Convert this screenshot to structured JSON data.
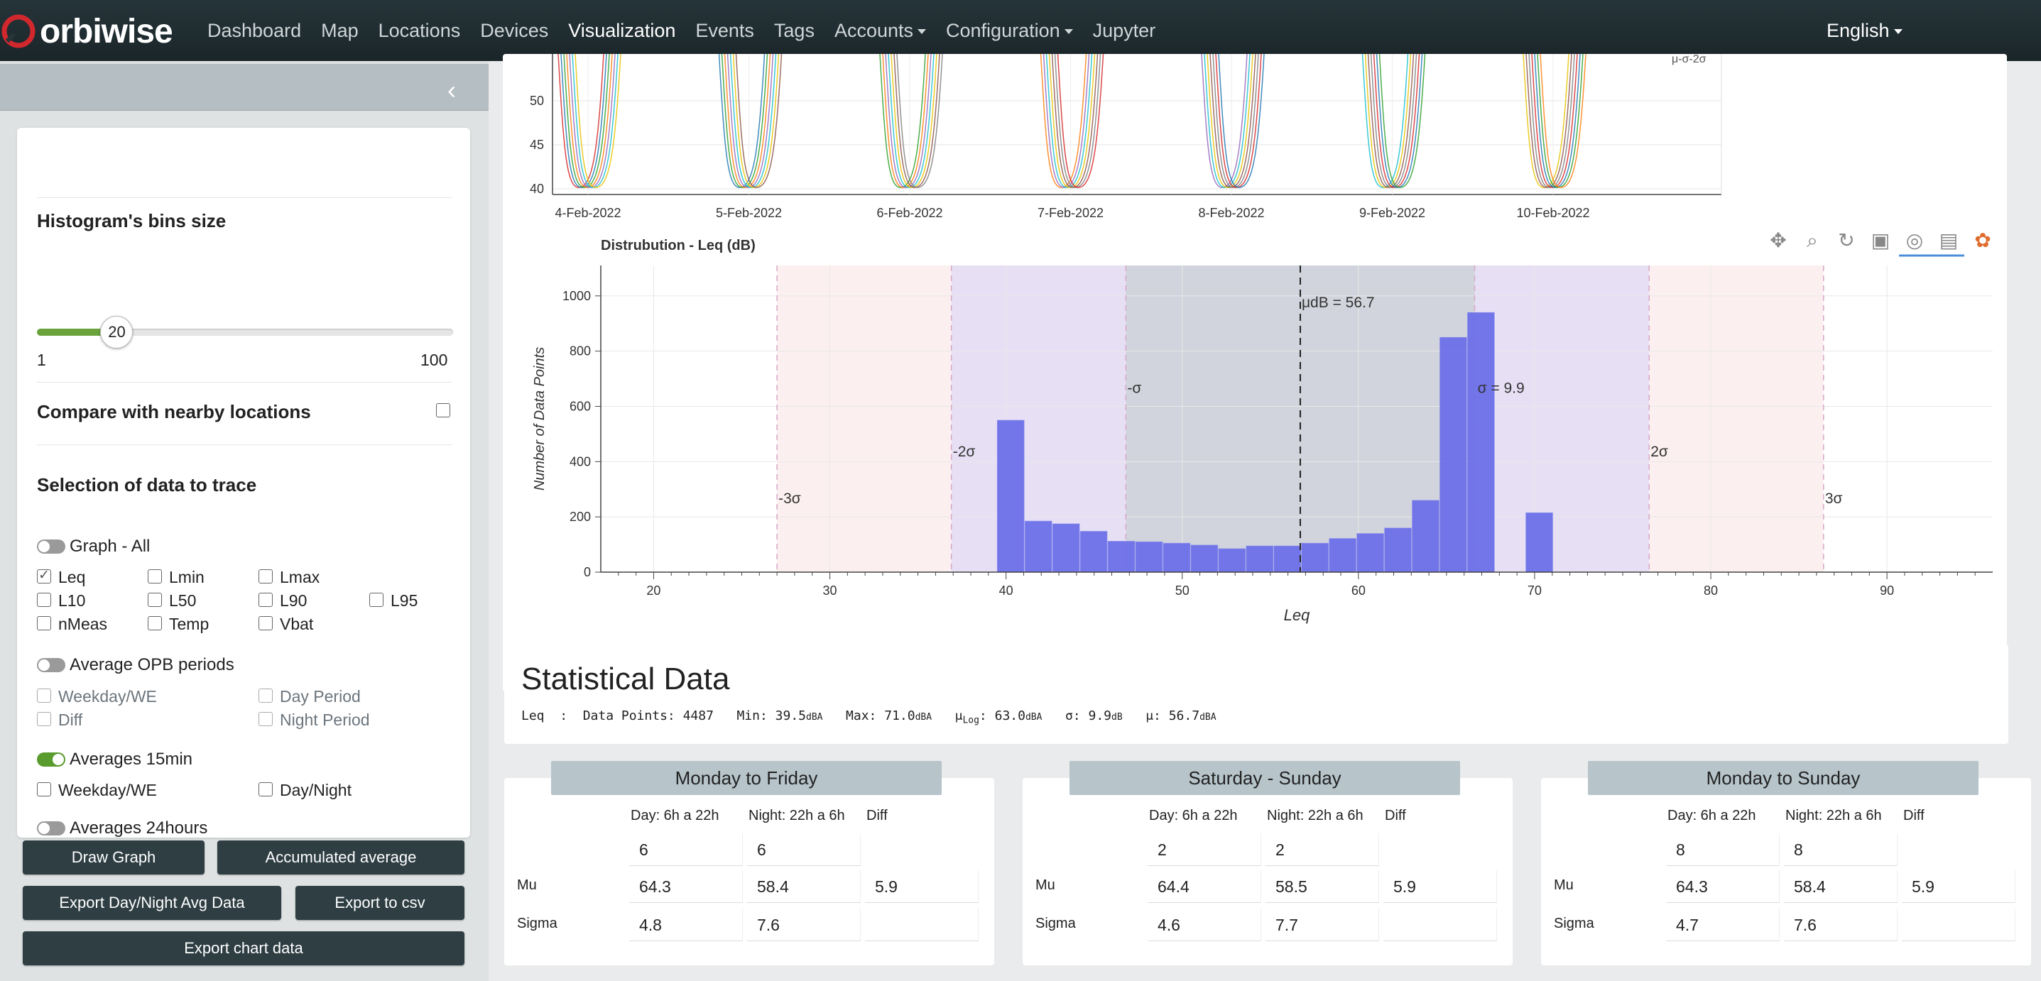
{
  "navbar": {
    "logo": "orbiwise",
    "items": [
      "Dashboard",
      "Map",
      "Locations",
      "Devices",
      "Visualization",
      "Events",
      "Tags",
      "Accounts",
      "Configuration",
      "Jupyter"
    ],
    "language": "English"
  },
  "sidebar": {
    "bins_title": "Histogram's bins size",
    "slider": {
      "min": "1",
      "max": "100",
      "value": "20",
      "value_num": 20
    },
    "compare_label": "Compare with nearby locations",
    "selection_title": "Selection of data to trace",
    "graph_all": "Graph - All",
    "metrics": [
      "Leq",
      "Lmin",
      "Lmax",
      "L10",
      "L50",
      "L90",
      "L95",
      "nMeas",
      "Temp",
      "Vbat"
    ],
    "avg_opb": "Average OPB periods",
    "opb_options": [
      "Weekday/WE",
      "Day Period",
      "Diff",
      "Night Period"
    ],
    "avg15": "Averages 15min",
    "avg15_options": [
      "Weekday/WE",
      "Day/Night"
    ],
    "avg24": "Averages 24hours",
    "buttons": {
      "draw": "Draw Graph",
      "accumulated": "Accumulated average",
      "export_daynight": "Export Day/Night Avg Data",
      "export_csv": "Export to csv",
      "export_chart": "Export chart data"
    }
  },
  "timeseries": {
    "yticks": [
      "50",
      "45",
      "40"
    ],
    "xticks": [
      "4-Feb-2022",
      "5-Feb-2022",
      "6-Feb-2022",
      "7-Feb-2022",
      "8-Feb-2022",
      "9-Feb-2022",
      "10-Feb-2022"
    ],
    "corner_label": "μ-σ-2σ"
  },
  "chart_data": {
    "type": "bar",
    "title": "Distrubution - Leq (dB)",
    "xlabel": "Leq",
    "ylabel": "Number of Data Points",
    "xlim": [
      17,
      96
    ],
    "ylim": [
      0,
      1110
    ],
    "xticks": [
      20,
      30,
      40,
      50,
      60,
      70,
      80,
      90
    ],
    "yticks": [
      0,
      200,
      400,
      600,
      800,
      1000
    ],
    "bin_width": 1.57,
    "bins": [
      {
        "x": 39.5,
        "y": 550
      },
      {
        "x": 41.07,
        "y": 185
      },
      {
        "x": 42.64,
        "y": 175
      },
      {
        "x": 44.21,
        "y": 148
      },
      {
        "x": 45.78,
        "y": 112
      },
      {
        "x": 47.35,
        "y": 110
      },
      {
        "x": 48.92,
        "y": 105
      },
      {
        "x": 50.49,
        "y": 98
      },
      {
        "x": 52.06,
        "y": 85
      },
      {
        "x": 53.63,
        "y": 95
      },
      {
        "x": 55.2,
        "y": 95
      },
      {
        "x": 56.77,
        "y": 105
      },
      {
        "x": 58.34,
        "y": 122
      },
      {
        "x": 59.91,
        "y": 140
      },
      {
        "x": 61.48,
        "y": 160
      },
      {
        "x": 63.05,
        "y": 260
      },
      {
        "x": 64.62,
        "y": 850
      },
      {
        "x": 66.19,
        "y": 940
      },
      {
        "x": 69.5,
        "y": 215
      }
    ],
    "mean": 56.7,
    "sigma": 9.9,
    "labels": {
      "mu": "μdB = 56.7",
      "sigma": "σ = 9.9",
      "m1": "-σ",
      "m2": "-2σ",
      "m3": "-3σ",
      "p2": "2σ",
      "p3": "3σ"
    },
    "colors": {
      "bar": "#6a6ee8",
      "band1": "#c9ccd6",
      "band2": "#e3dbf3",
      "band3": "#fbecec"
    }
  },
  "stats": {
    "title": "Statistical Data",
    "metric": "Leq",
    "points_label": "Data Points:",
    "points": "4487",
    "min_label": "Min:",
    "min": "39.5",
    "max_label": "Max:",
    "max": "71.0",
    "mulog_label": "μ",
    "mulog_sub": "Log",
    "mulog": "63.0",
    "sigma_label": "σ:",
    "sigma": "9.9",
    "mu_label": "μ:",
    "mu": "56.7",
    "unit_dba": "dBA",
    "unit_db": "dB"
  },
  "tables": [
    {
      "title": "Monday to Friday",
      "day": "Day: 6h a 22h",
      "night": "Night: 22h a 6h",
      "diff": "Diff",
      "rows": [
        {
          "label": "",
          "day": "6",
          "night": "6",
          "diff": ""
        },
        {
          "label": "Mu",
          "day": "64.3",
          "night": "58.4",
          "diff": "5.9"
        },
        {
          "label": "Sigma",
          "day": "4.8",
          "night": "7.6",
          "diff": ""
        }
      ]
    },
    {
      "title": "Saturday - Sunday",
      "day": "Day: 6h a 22h",
      "night": "Night: 22h a 6h",
      "diff": "Diff",
      "rows": [
        {
          "label": "",
          "day": "2",
          "night": "2",
          "diff": ""
        },
        {
          "label": "Mu",
          "day": "64.4",
          "night": "58.5",
          "diff": "5.9"
        },
        {
          "label": "Sigma",
          "day": "4.6",
          "night": "7.7",
          "diff": ""
        }
      ]
    },
    {
      "title": "Monday to Sunday",
      "day": "Day: 6h a 22h",
      "night": "Night: 22h a 6h",
      "diff": "Diff",
      "rows": [
        {
          "label": "",
          "day": "8",
          "night": "8",
          "diff": ""
        },
        {
          "label": "Mu",
          "day": "64.3",
          "night": "58.4",
          "diff": "5.9"
        },
        {
          "label": "Sigma",
          "day": "4.7",
          "night": "7.6",
          "diff": ""
        }
      ]
    }
  ]
}
